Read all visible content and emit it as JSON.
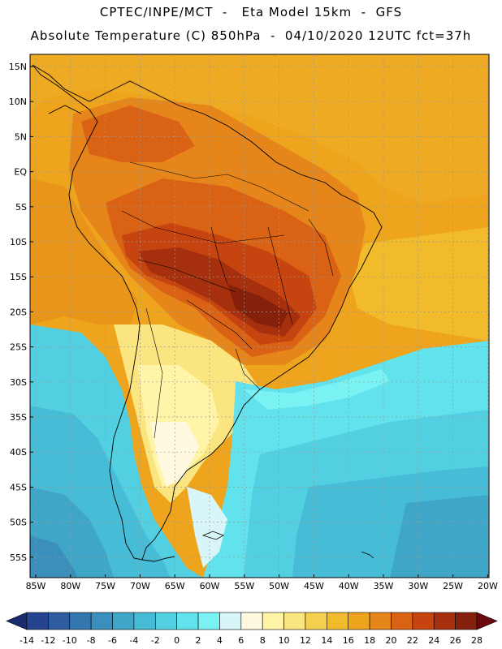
{
  "header": {
    "line1": "CPTEC/INPE/MCT  -   Eta Model 15km  -  GFS",
    "line2": "Absolute Temperature (C) 850hPa  -  04/10/2020 12UTC fct=37h"
  },
  "map": {
    "lat_labels": [
      "15N",
      "10N",
      "5N",
      "EQ",
      "5S",
      "10S",
      "15S",
      "20S",
      "25S",
      "30S",
      "35S",
      "40S",
      "45S",
      "50S",
      "55S"
    ],
    "lon_labels": [
      "85W",
      "80W",
      "75W",
      "70W",
      "65W",
      "60W",
      "55W",
      "50W",
      "45W",
      "40W",
      "35W",
      "30W",
      "25W",
      "20W"
    ],
    "grid_lines": "dotted"
  },
  "colorbar": {
    "labels": [
      "-14",
      "-12",
      "-10",
      "-8",
      "-6",
      "-4",
      "-2",
      "0",
      "2",
      "4",
      "6",
      "8",
      "10",
      "12",
      "14",
      "16",
      "18",
      "20",
      "22",
      "24",
      "26",
      "28"
    ],
    "colors": [
      "#26438f",
      "#2e5c9e",
      "#3476ae",
      "#3a8fbd",
      "#3fa6c8",
      "#47bcd6",
      "#52d0e2",
      "#62e2ec",
      "#7af2f4",
      "#d8f6f8",
      "#fff9e0",
      "#fff4a8",
      "#fbe580",
      "#f5d050",
      "#f2bb2c",
      "#eea41c",
      "#e6861a",
      "#da6214",
      "#c64410",
      "#a6300e",
      "#84200c"
    ],
    "under_color": "#1a2a6e",
    "over_color": "#6a0a10"
  }
}
